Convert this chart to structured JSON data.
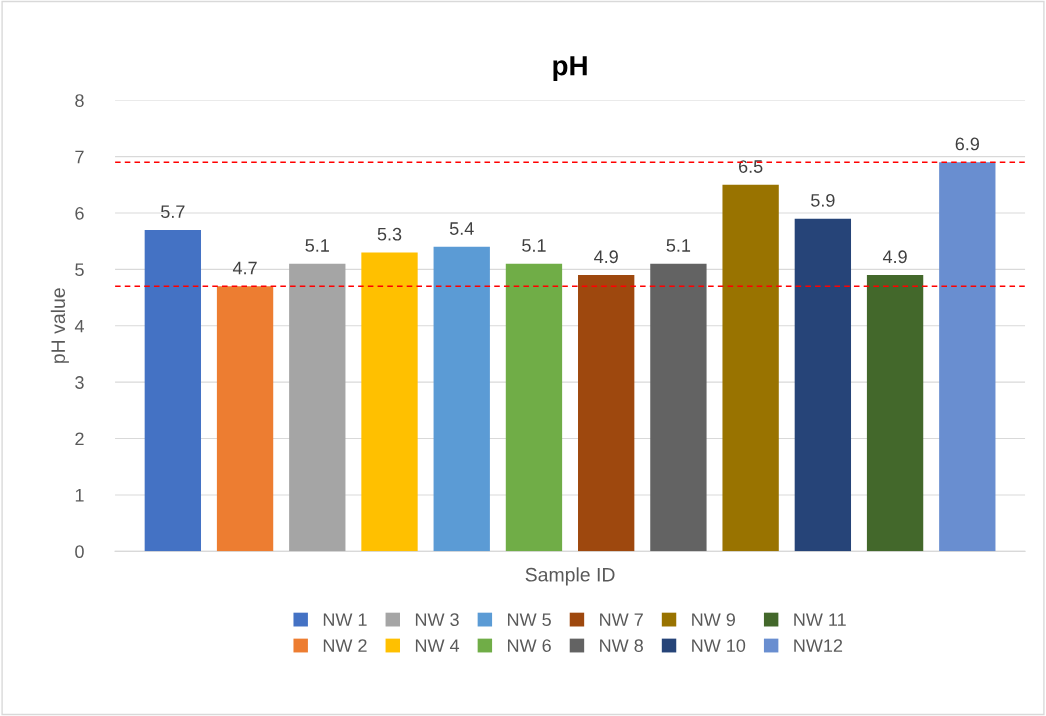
{
  "chart_data": {
    "type": "bar",
    "title": "pH",
    "xlabel": "Sample ID",
    "ylabel": "pH value",
    "categories": [
      null,
      null,
      null,
      null,
      null,
      null,
      null,
      null,
      null,
      null,
      null,
      null
    ],
    "series": [
      {
        "name": "NW 1",
        "color": "#4472c4",
        "values": [
          5.7,
          null,
          null,
          null,
          null,
          null,
          null,
          null,
          null,
          null,
          null,
          null
        ]
      },
      {
        "name": "NW 2",
        "color": "#ed7d31",
        "values": [
          null,
          4.7,
          null,
          null,
          null,
          null,
          null,
          null,
          null,
          null,
          null,
          null
        ]
      },
      {
        "name": "NW 3",
        "color": "#a5a5a5",
        "values": [
          null,
          null,
          5.1,
          null,
          null,
          null,
          null,
          null,
          null,
          null,
          null,
          null
        ]
      },
      {
        "name": "NW 4",
        "color": "#ffc000",
        "values": [
          null,
          null,
          null,
          5.3,
          null,
          null,
          null,
          null,
          null,
          null,
          null,
          null
        ]
      },
      {
        "name": "NW 5",
        "color": "#5b9bd5",
        "values": [
          null,
          null,
          null,
          null,
          5.4,
          null,
          null,
          null,
          null,
          null,
          null,
          null
        ]
      },
      {
        "name": "NW 6",
        "color": "#70ad47",
        "values": [
          null,
          null,
          null,
          null,
          null,
          5.1,
          null,
          null,
          null,
          null,
          null,
          null
        ]
      },
      {
        "name": "NW 7",
        "color": "#9e480e",
        "values": [
          null,
          null,
          null,
          null,
          null,
          null,
          4.9,
          null,
          null,
          null,
          null,
          null
        ]
      },
      {
        "name": "NW 8",
        "color": "#636363",
        "values": [
          null,
          null,
          null,
          null,
          null,
          null,
          null,
          5.1,
          null,
          null,
          null,
          null
        ]
      },
      {
        "name": "NW 9",
        "color": "#997300",
        "values": [
          null,
          null,
          null,
          null,
          null,
          null,
          null,
          null,
          6.5,
          null,
          null,
          null
        ]
      },
      {
        "name": "NW 10",
        "color": "#264478",
        "values": [
          null,
          null,
          null,
          null,
          null,
          null,
          null,
          null,
          null,
          5.9,
          null,
          null
        ]
      },
      {
        "name": "NW 11",
        "color": "#43682b",
        "values": [
          null,
          null,
          null,
          null,
          null,
          null,
          null,
          null,
          null,
          null,
          4.9,
          null
        ]
      },
      {
        "name": "NW12",
        "color": "#698ed0",
        "values": [
          null,
          null,
          null,
          null,
          null,
          null,
          null,
          null,
          null,
          null,
          null,
          6.9
        ]
      }
    ],
    "ylim": [
      0,
      8
    ],
    "yticks": [
      0,
      1,
      2,
      3,
      4,
      5,
      6,
      7,
      8
    ],
    "ref_lines": [
      {
        "axis": "y",
        "value": 6.9,
        "color": "#ff0000",
        "line_style": "dashed"
      },
      {
        "axis": "y",
        "value": 4.7,
        "color": "#ff0000",
        "line_style": "dashed"
      }
    ],
    "data_labels": true,
    "grid": "y",
    "legend": "bottom"
  }
}
